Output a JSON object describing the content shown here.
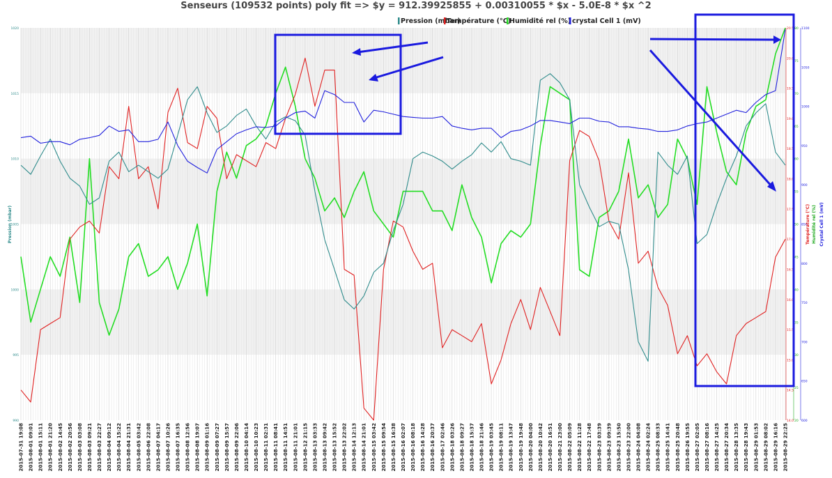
{
  "chart_data": {
    "type": "line",
    "title": "Senseurs  (109532 points)  poly fit => $y = 912.39925855 + 0.00310055 * $x  - 5.0E-8 * $x ^2",
    "legend_position": "top-right",
    "grid": true,
    "x_tick_labels": [
      "2015-07-31 19:08",
      "2015-08-01 09:01",
      "2015-08-01 15:11",
      "2015-08-01 21:20",
      "2015-08-02 14:45",
      "2015-08-02 20:56",
      "2015-08-03 03:08",
      "2015-08-03 09:21",
      "2015-08-03 22:27",
      "2015-08-04 09:12",
      "2015-08-04 15:22",
      "2015-08-04 21:31",
      "2015-08-05 03:42",
      "2015-08-06 22:08",
      "2015-08-07 04:17",
      "2015-08-07 10:26",
      "2015-08-07 16:35",
      "2015-08-08 12:56",
      "2015-08-08 19:07",
      "2015-08-09 01:16",
      "2015-08-09 07:27",
      "2015-08-09 15:57",
      "2015-08-09 22:06",
      "2015-08-10 04:14",
      "2015-08-10 10:23",
      "2015-08-11 02:31",
      "2015-08-11 08:41",
      "2015-08-11 14:51",
      "2015-08-11 21:01",
      "2015-08-12 21:15",
      "2015-08-13 03:33",
      "2015-08-13 09:42",
      "2015-08-13 15:52",
      "2015-08-13 22:02",
      "2015-08-14 12:13",
      "2015-08-14 21:01",
      "2015-08-15 03:42",
      "2015-08-15 09:54",
      "2015-08-15 16:38",
      "2015-08-16 02:07",
      "2015-08-16 08:18",
      "2015-08-16 14:28",
      "2015-08-16 20:37",
      "2015-08-17 02:46",
      "2015-08-18 03:26",
      "2015-08-18 09:27",
      "2015-08-18 15:37",
      "2015-08-18 21:46",
      "2015-08-19 03:45",
      "2015-08-19 08:11",
      "2015-08-19 13:47",
      "2015-08-19 19:48",
      "2015-08-20 04:00",
      "2015-08-20 10:42",
      "2015-08-20 16:51",
      "2015-08-21 23:00",
      "2015-08-22 05:09",
      "2015-08-22 11:28",
      "2015-08-22 17:48",
      "2015-08-23 03:39",
      "2015-08-23 09:39",
      "2015-08-23 15:50",
      "2015-08-23 22:00",
      "2015-08-24 04:08",
      "2015-08-24 02:24",
      "2015-08-25 08:33",
      "2015-08-25 14:41",
      "2015-08-25 20:48",
      "2015-08-26 19:55",
      "2015-08-27 02:05",
      "2015-08-27 08:16",
      "2015-08-27 14:25",
      "2015-08-27 20:34",
      "2015-08-28 13:35",
      "2015-08-28 19:43",
      "2015-08-29 01:53",
      "2015-08-29 08:02",
      "2015-08-29 16:16",
      "2015-08-29 22:25"
    ],
    "axes": {
      "pression": {
        "label": "Pression (mbar)",
        "ticks": [
          "990",
          "995",
          "1000",
          "1005",
          "1010",
          "1015",
          "1020"
        ],
        "ylim": [
          990,
          1020
        ]
      },
      "temperature": {
        "label": "Température (°C)",
        "ticks": [
          "14.0",
          "14.5",
          "15.0",
          "15.5",
          "16.0",
          "16.5",
          "17.0",
          "17.5",
          "18.0",
          "18.5",
          "19.0",
          "19.5",
          "20.0",
          "20.5"
        ],
        "ylim": [
          14.0,
          20.5
        ]
      },
      "humidite": {
        "label": "Humidité rel (%)",
        "ticks": [
          "20",
          "25",
          "30",
          "35",
          "40",
          "45",
          "50",
          "55",
          "60",
          "65",
          "70",
          "75",
          "80"
        ],
        "ylim": [
          20,
          80
        ]
      },
      "crystal": {
        "label": "Crystal Cell 1 (mV)",
        "ticks": [
          "600",
          "650",
          "700",
          "750",
          "800",
          "850",
          "900",
          "950",
          "1000",
          "1050",
          "1100"
        ],
        "ylim": [
          600,
          1100
        ]
      }
    },
    "series": [
      {
        "name": "Pression (mbar)",
        "color": "#2e8b8b",
        "axis": "pression",
        "values": [
          1009.5,
          1008.8,
          1010.2,
          1011.5,
          1009.8,
          1008.5,
          1007.9,
          1006.5,
          1007.0,
          1009.8,
          1010.5,
          1009.0,
          1009.5,
          1009.0,
          1008.5,
          1009.2,
          1011.8,
          1014.5,
          1015.5,
          1013.5,
          1012.0,
          1012.5,
          1013.3,
          1013.8,
          1012.5,
          1011.5,
          1012.8,
          1013.2,
          1012.9,
          1011.8,
          1007.5,
          1003.8,
          1001.5,
          999.2,
          998.5,
          999.5,
          1001.3,
          1002.0,
          1004.5,
          1006.5,
          1010.0,
          1010.5,
          1010.2,
          1009.8,
          1009.2,
          1009.8,
          1010.3,
          1011.2,
          1010.5,
          1011.3,
          1010.0,
          1009.8,
          1009.5,
          1016.0,
          1016.5,
          1015.8,
          1014.5,
          1008.0,
          1006.3,
          1004.8,
          1005.2,
          1005.0,
          1001.5,
          996.0,
          994.5,
          1010.5,
          1009.5,
          1008.8,
          1010.2,
          1003.5,
          1004.2,
          1006.5,
          1008.5,
          1010.2,
          1012.5,
          1013.5,
          1014.2,
          1010.5,
          1009.5
        ]
      },
      {
        "name": "Température (°C)",
        "color": "#e02020",
        "axis": "temperature",
        "values": [
          14.5,
          14.3,
          15.5,
          15.6,
          15.7,
          17.0,
          17.2,
          17.3,
          17.1,
          18.2,
          18.0,
          19.2,
          18.0,
          18.2,
          17.5,
          19.1,
          19.5,
          18.6,
          18.5,
          19.2,
          19.0,
          18.0,
          18.4,
          18.3,
          18.2,
          18.6,
          18.5,
          19.0,
          19.4,
          20.0,
          19.2,
          19.8,
          19.8,
          16.5,
          16.4,
          14.2,
          14.0,
          16.5,
          17.3,
          17.2,
          16.8,
          16.5,
          16.6,
          15.2,
          15.5,
          15.4,
          15.3,
          15.6,
          14.6,
          15.0,
          15.6,
          16.0,
          15.5,
          16.2,
          15.8,
          15.4,
          18.3,
          18.8,
          18.7,
          18.3,
          17.3,
          17.0,
          18.1,
          16.6,
          16.8,
          16.2,
          15.9,
          15.1,
          15.4,
          14.9,
          15.1,
          14.8,
          14.6,
          15.4,
          15.6,
          15.7,
          15.8,
          16.7,
          17.0
        ]
      },
      {
        "name": "Humidité rel (%)",
        "color": "#22dd22",
        "axis": "humidite",
        "values": [
          45.0,
          35.0,
          40.0,
          45.0,
          42.0,
          48.0,
          38.0,
          60.0,
          38.0,
          33.0,
          37.0,
          45.0,
          47.0,
          42.0,
          43.0,
          45.0,
          40.0,
          44.0,
          50.0,
          39.0,
          55.0,
          61.0,
          57.0,
          62.0,
          63.0,
          65.0,
          70.0,
          74.0,
          68.0,
          60.0,
          57.0,
          52.0,
          54.0,
          51.0,
          55.0,
          58.0,
          52.0,
          50.0,
          48.0,
          55.0,
          55.0,
          55.0,
          52.0,
          52.0,
          49.0,
          56.0,
          51.0,
          48.0,
          41.0,
          47.0,
          49.0,
          48.0,
          50.0,
          62.0,
          71.0,
          70.0,
          69.0,
          43.0,
          42.0,
          51.0,
          52.0,
          55.0,
          63.0,
          54.0,
          56.0,
          51.0,
          53.0,
          63.0,
          60.0,
          53.0,
          71.0,
          64.0,
          58.0,
          56.0,
          64.0,
          68.0,
          69.0,
          76.0,
          80.0
        ]
      },
      {
        "name": "crystal Cell 1 (mV)",
        "color": "#2020dd",
        "axis": "crystal",
        "values": [
          960,
          962,
          953,
          955,
          955,
          951,
          958,
          960,
          963,
          975,
          968,
          970,
          955,
          955,
          958,
          980,
          950,
          930,
          922,
          915,
          945,
          955,
          965,
          970,
          974,
          973,
          975,
          985,
          992,
          994,
          985,
          1020,
          1015,
          1005,
          1005,
          980,
          995,
          993,
          990,
          987,
          986,
          985,
          985,
          987,
          975,
          972,
          970,
          972,
          972,
          960,
          968,
          970,
          975,
          982,
          982,
          980,
          978,
          985,
          985,
          981,
          980,
          974,
          974,
          972,
          971,
          968,
          968,
          970,
          975,
          978,
          980,
          985,
          990,
          995,
          992,
          1005,
          1015,
          1020,
          1098
        ]
      }
    ]
  },
  "annotations": {
    "boxes": 2,
    "arrows": 4,
    "color": "#1a1adf"
  }
}
